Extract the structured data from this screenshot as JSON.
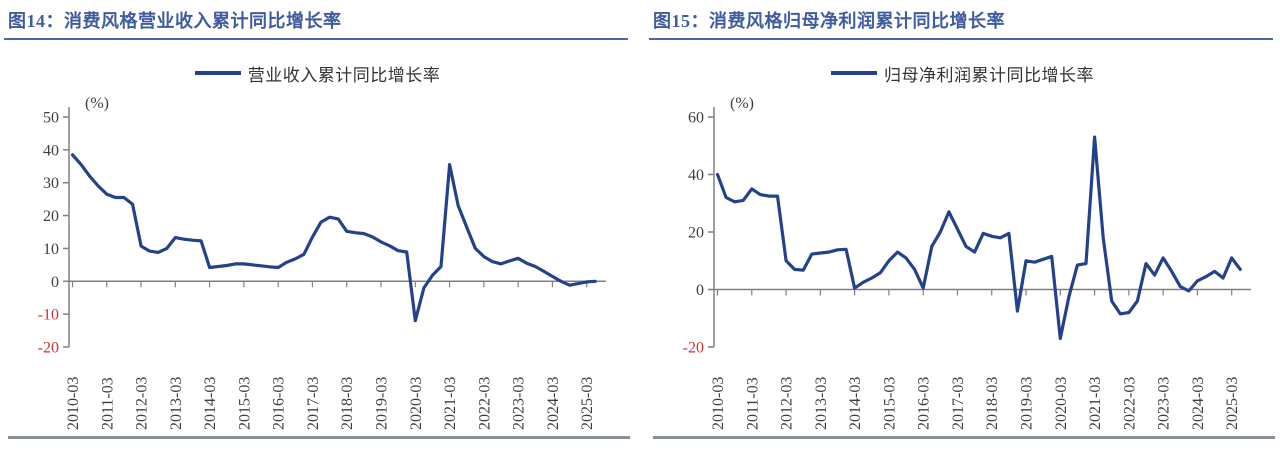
{
  "colors": {
    "line": "#24418c",
    "title": "#3f5c9e",
    "title_rule": "#4a68a8",
    "axis": "#808080",
    "tick_label": "#3f3f3f",
    "negative_tick": "#cc3333",
    "bottom_rule": "#8a9099",
    "background": "#ffffff"
  },
  "chart_data": [
    {
      "type": "line",
      "title": "图14：消费风格营业收入累计同比增长率",
      "legend": "营业收入累计同比增长率",
      "ylabel": "(%)",
      "ylim": [
        -20,
        50
      ],
      "yticks": [
        50,
        40,
        30,
        20,
        10,
        0,
        -10,
        -20
      ],
      "grid": false,
      "legend_position": "top-center",
      "x_tick_labels": [
        "2010-03",
        "2011-03",
        "2012-03",
        "2013-03",
        "2014-03",
        "2015-03",
        "2016-03",
        "2017-03",
        "2018-03",
        "2019-03",
        "2020-03",
        "2021-03",
        "2022-03",
        "2023-03",
        "2024-03",
        "2025-03"
      ],
      "categories": [
        "2010-03",
        "2010-06",
        "2010-09",
        "2010-12",
        "2011-03",
        "2011-06",
        "2011-09",
        "2011-12",
        "2012-03",
        "2012-06",
        "2012-09",
        "2012-12",
        "2013-03",
        "2013-06",
        "2013-09",
        "2013-12",
        "2014-03",
        "2014-06",
        "2014-09",
        "2014-12",
        "2015-03",
        "2015-06",
        "2015-09",
        "2015-12",
        "2016-03",
        "2016-06",
        "2016-09",
        "2016-12",
        "2017-03",
        "2017-06",
        "2017-09",
        "2017-12",
        "2018-03",
        "2018-06",
        "2018-09",
        "2018-12",
        "2019-03",
        "2019-06",
        "2019-09",
        "2019-12",
        "2020-03",
        "2020-06",
        "2020-09",
        "2020-12",
        "2021-03",
        "2021-06",
        "2021-09",
        "2021-12",
        "2022-03",
        "2022-06",
        "2022-09",
        "2022-12",
        "2023-03",
        "2023-06",
        "2023-09",
        "2023-12",
        "2024-03",
        "2024-06",
        "2024-09",
        "2024-12",
        "2025-03",
        "2025-06"
      ],
      "values": [
        38.5,
        35.5,
        32,
        29,
        26.5,
        25.5,
        25.5,
        23.5,
        10.7,
        9.2,
        8.8,
        10,
        13.3,
        12.8,
        12.5,
        12.3,
        4.2,
        4.5,
        4.8,
        5.3,
        5.3,
        5,
        4.7,
        4.4,
        4.2,
        5.8,
        6.8,
        8.2,
        13.5,
        18,
        19.5,
        19,
        15.2,
        14.8,
        14.5,
        13.5,
        12,
        10.8,
        9.3,
        8.9,
        -12,
        -2,
        1.8,
        4.5,
        35.5,
        23,
        16.5,
        10,
        7.5,
        6,
        5.3,
        6.2,
        7,
        5.5,
        4.5,
        3,
        1.5,
        0,
        -1.2,
        -0.7,
        -0.2,
        0
      ]
    },
    {
      "type": "line",
      "title": "图15：消费风格归母净利润累计同比增长率",
      "legend": "归母净利润累计同比增长率",
      "ylabel": "(%)",
      "ylim": [
        -20,
        60
      ],
      "yticks": [
        60,
        40,
        20,
        0,
        -20
      ],
      "grid": false,
      "legend_position": "top-center",
      "x_tick_labels": [
        "2010-03",
        "2011-03",
        "2012-03",
        "2013-03",
        "2014-03",
        "2015-03",
        "2016-03",
        "2017-03",
        "2018-03",
        "2019-03",
        "2020-03",
        "2021-03",
        "2022-03",
        "2023-03",
        "2024-03",
        "2025-03"
      ],
      "categories": [
        "2010-03",
        "2010-06",
        "2010-09",
        "2010-12",
        "2011-03",
        "2011-06",
        "2011-09",
        "2011-12",
        "2012-03",
        "2012-06",
        "2012-09",
        "2012-12",
        "2013-03",
        "2013-06",
        "2013-09",
        "2013-12",
        "2014-03",
        "2014-06",
        "2014-09",
        "2014-12",
        "2015-03",
        "2015-06",
        "2015-09",
        "2015-12",
        "2016-03",
        "2016-06",
        "2016-09",
        "2016-12",
        "2017-03",
        "2017-06",
        "2017-09",
        "2017-12",
        "2018-03",
        "2018-06",
        "2018-09",
        "2018-12",
        "2019-03",
        "2019-06",
        "2019-09",
        "2019-12",
        "2020-03",
        "2020-06",
        "2020-09",
        "2020-12",
        "2021-03",
        "2021-06",
        "2021-09",
        "2021-12",
        "2022-03",
        "2022-06",
        "2022-09",
        "2022-12",
        "2023-03",
        "2023-06",
        "2023-09",
        "2023-12",
        "2024-03",
        "2024-06",
        "2024-09",
        "2024-12",
        "2025-03",
        "2025-06"
      ],
      "values": [
        40,
        32,
        30.5,
        31,
        35,
        33,
        32.5,
        32.5,
        10,
        7,
        6.7,
        12.3,
        12.7,
        13,
        13.8,
        14,
        0.5,
        2.5,
        4,
        5.8,
        10,
        13,
        11,
        7,
        0.5,
        15,
        20,
        27,
        21,
        15,
        13,
        19.5,
        18.5,
        18,
        19.5,
        -7.5,
        10,
        9.5,
        10.5,
        11.5,
        -17,
        -2.5,
        8.5,
        9,
        53,
        18,
        -4,
        -8.5,
        -8,
        -4,
        9,
        5,
        11,
        6.3,
        1,
        -0.5,
        3,
        4.5,
        6.3,
        4,
        11,
        7
      ]
    }
  ]
}
